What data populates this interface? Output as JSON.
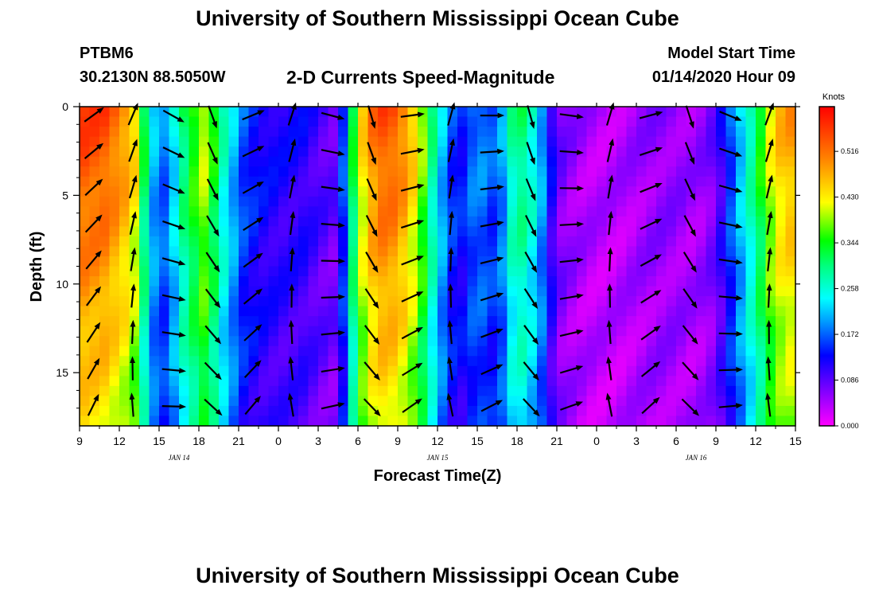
{
  "header": {
    "title": "University of Southern Mississippi Ocean Cube",
    "station": "PTBM6",
    "location": "30.2130N 88.5050W",
    "subtitle": "2-D Currents Speed-Magnitude",
    "model_start_label": "Model Start Time",
    "model_start_value": "01/14/2020 Hour 09"
  },
  "footer": {
    "title": "University of Southern Mississippi Ocean Cube"
  },
  "chart_data": {
    "type": "heatmap",
    "title": "2-D Currents Speed-Magnitude",
    "xlabel": "Forecast Time(Z)",
    "ylabel": "Depth (ft)",
    "x_range_hours": [
      0,
      54
    ],
    "x_tick_labels": [
      "9",
      "12",
      "15",
      "18",
      "21",
      "0",
      "3",
      "6",
      "9",
      "12",
      "15",
      "18",
      "21",
      "0",
      "3",
      "6",
      "9",
      "12",
      "15"
    ],
    "date_labels": [
      {
        "text": "JAN 14",
        "at_hour": 7.5
      },
      {
        "text": "JAN 15",
        "at_hour": 27
      },
      {
        "text": "JAN 16",
        "at_hour": 46.5
      }
    ],
    "ylim": [
      0,
      18
    ],
    "y_ticks": [
      0,
      5,
      10,
      15
    ],
    "colorbar": {
      "unit": "Knots",
      "tick_labels": [
        "0.516",
        "0.430",
        "0.344",
        "0.258",
        "0.172",
        "0.086",
        "0.000"
      ],
      "tick_values": [
        0.516,
        0.43,
        0.344,
        0.258,
        0.172,
        0.086,
        0.0
      ],
      "range": [
        0,
        0.6
      ],
      "colors": [
        "#ff00ff",
        "#8000ff",
        "#0000ff",
        "#00a0ff",
        "#00ffff",
        "#00ff80",
        "#00ff00",
        "#ffff00",
        "#ff8000",
        "#ff0000"
      ]
    },
    "speed_profile": {
      "time_hours": [
        0,
        2,
        4,
        5.5,
        6.5,
        8,
        9.5,
        11,
        12.5,
        14,
        15.5,
        17,
        18,
        19.5,
        21,
        22.5,
        24,
        25.5,
        27,
        28.5,
        30,
        31.5,
        33,
        34.5,
        36,
        37.5,
        39,
        40.5,
        42,
        43.5,
        45,
        46.5,
        48,
        49.5,
        51,
        52.5,
        54
      ],
      "speed_knots": [
        0.56,
        0.55,
        0.48,
        0.22,
        0.18,
        0.33,
        0.42,
        0.26,
        0.16,
        0.13,
        0.12,
        0.12,
        0.1,
        0.08,
        0.42,
        0.55,
        0.54,
        0.44,
        0.25,
        0.13,
        0.2,
        0.16,
        0.33,
        0.25,
        0.08,
        0.05,
        0.04,
        0.04,
        0.05,
        0.06,
        0.06,
        0.05,
        0.08,
        0.2,
        0.32,
        0.46,
        0.5
      ]
    }
  }
}
